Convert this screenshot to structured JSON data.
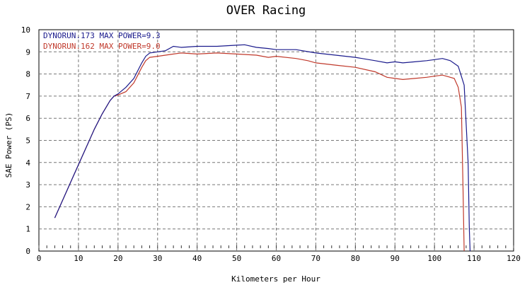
{
  "chart_data": {
    "type": "line",
    "title": "OVER Racing",
    "xlabel": "Kilometers per Hour",
    "ylabel": "SAE Power (PS)",
    "xlim": [
      0,
      120
    ],
    "ylim": [
      0,
      10
    ],
    "xticks": [
      "0",
      "10",
      "20",
      "30",
      "40",
      "50",
      "60",
      "70",
      "80",
      "90",
      "100",
      "110",
      "120"
    ],
    "yticks": [
      "0",
      "1",
      "2",
      "3",
      "4",
      "5",
      "6",
      "7",
      "8",
      "9",
      "10"
    ],
    "grid": true,
    "legend_position": "top-left",
    "series": [
      {
        "name": "DYNORUN.173  MAX POWER=9.3",
        "color": "#1a1a8c",
        "x": [
          4,
          6,
          8,
          10,
          12,
          14,
          16,
          18,
          19,
          20,
          22,
          24,
          26,
          27,
          28,
          30,
          32,
          34,
          36,
          40,
          45,
          50,
          52,
          55,
          58,
          60,
          65,
          70,
          75,
          80,
          85,
          88,
          90,
          92,
          95,
          98,
          100,
          102,
          104,
          106,
          107.5,
          108.5,
          108.8,
          109
        ],
        "y": [
          1.5,
          2.3,
          3.1,
          3.9,
          4.7,
          5.5,
          6.2,
          6.8,
          7.0,
          7.1,
          7.4,
          7.8,
          8.5,
          8.8,
          8.95,
          9.0,
          9.05,
          9.25,
          9.2,
          9.25,
          9.25,
          9.3,
          9.32,
          9.2,
          9.15,
          9.1,
          9.1,
          8.95,
          8.85,
          8.75,
          8.6,
          8.5,
          8.55,
          8.5,
          8.55,
          8.6,
          8.65,
          8.7,
          8.6,
          8.35,
          7.5,
          4.0,
          1.0,
          0.0
        ]
      },
      {
        "name": "DYNORUN.162  MAX POWER=9.0",
        "color": "#c0392b",
        "x": [
          4,
          6,
          8,
          10,
          12,
          14,
          16,
          18,
          19,
          20,
          22,
          24,
          26,
          27,
          28,
          30,
          32,
          34,
          36,
          40,
          45,
          50,
          55,
          58,
          60,
          65,
          68,
          70,
          75,
          80,
          85,
          88,
          90,
          92,
          95,
          98,
          100,
          102,
          104,
          105,
          106,
          106.8,
          107.2,
          107.5
        ],
        "y": [
          1.5,
          2.3,
          3.1,
          3.9,
          4.7,
          5.5,
          6.2,
          6.8,
          7.0,
          7.05,
          7.2,
          7.6,
          8.3,
          8.6,
          8.75,
          8.8,
          8.85,
          8.9,
          8.95,
          8.9,
          8.95,
          8.9,
          8.85,
          8.75,
          8.8,
          8.7,
          8.6,
          8.5,
          8.4,
          8.3,
          8.1,
          7.85,
          7.8,
          7.75,
          7.8,
          7.85,
          7.9,
          7.95,
          7.85,
          7.8,
          7.4,
          6.5,
          3.0,
          0.0
        ]
      }
    ]
  }
}
